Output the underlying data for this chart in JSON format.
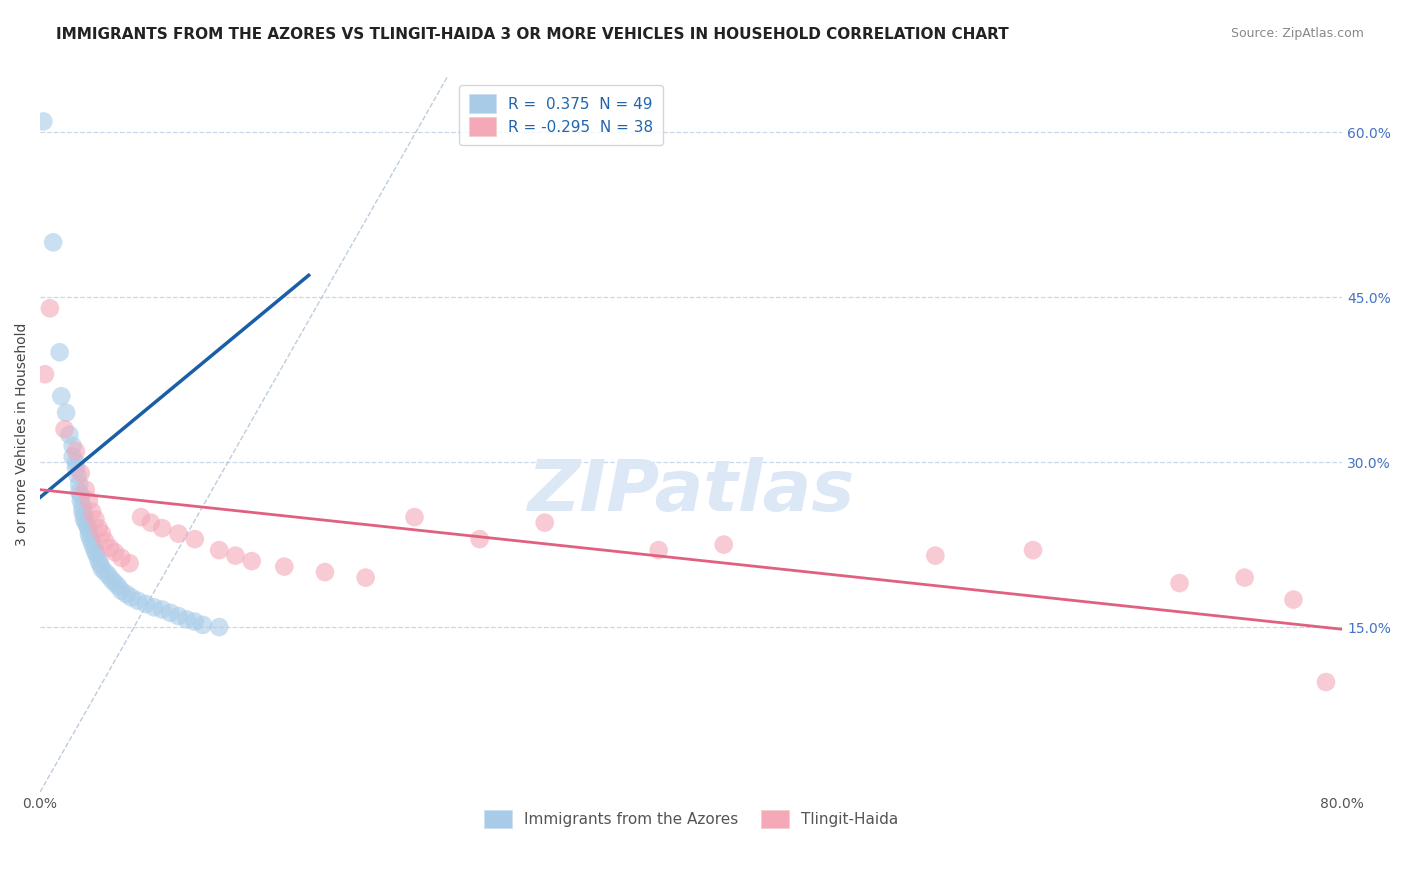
{
  "title": "IMMIGRANTS FROM THE AZORES VS TLINGIT-HAIDA 3 OR MORE VEHICLES IN HOUSEHOLD CORRELATION CHART",
  "source": "Source: ZipAtlas.com",
  "ylabel": "3 or more Vehicles in Household",
  "xlabel": "",
  "xlim": [
    0.0,
    0.8
  ],
  "ylim": [
    0.0,
    0.65
  ],
  "yticks_right": [
    0.15,
    0.3,
    0.45,
    0.6
  ],
  "ytick_right_labels": [
    "15.0%",
    "30.0%",
    "45.0%",
    "60.0%"
  ],
  "blue_color": "#a8cce8",
  "pink_color": "#f4a8b8",
  "blue_line_color": "#1a5ea8",
  "pink_line_color": "#e06080",
  "watermark_text": "ZIPatlas",
  "title_fontsize": 11,
  "source_fontsize": 9,
  "axis_label_fontsize": 10,
  "tick_fontsize": 10,
  "legend_fontsize": 11,
  "watermark_fontsize": 52,
  "watermark_color": "#dce8f5",
  "background_color": "#ffffff",
  "grid_color": "#c8d8ea",
  "dot_size": 180,
  "blue_points": [
    [
      0.002,
      0.61
    ],
    [
      0.008,
      0.5
    ],
    [
      0.012,
      0.4
    ],
    [
      0.013,
      0.36
    ],
    [
      0.016,
      0.345
    ],
    [
      0.018,
      0.325
    ],
    [
      0.02,
      0.315
    ],
    [
      0.02,
      0.305
    ],
    [
      0.022,
      0.3
    ],
    [
      0.022,
      0.295
    ],
    [
      0.023,
      0.288
    ],
    [
      0.024,
      0.28
    ],
    [
      0.024,
      0.273
    ],
    [
      0.025,
      0.27
    ],
    [
      0.025,
      0.265
    ],
    [
      0.026,
      0.26
    ],
    [
      0.026,
      0.255
    ],
    [
      0.027,
      0.252
    ],
    [
      0.027,
      0.248
    ],
    [
      0.028,
      0.245
    ],
    [
      0.029,
      0.242
    ],
    [
      0.03,
      0.238
    ],
    [
      0.03,
      0.234
    ],
    [
      0.031,
      0.23
    ],
    [
      0.032,
      0.226
    ],
    [
      0.033,
      0.222
    ],
    [
      0.034,
      0.218
    ],
    [
      0.035,
      0.215
    ],
    [
      0.036,
      0.21
    ],
    [
      0.037,
      0.207
    ],
    [
      0.038,
      0.203
    ],
    [
      0.04,
      0.2
    ],
    [
      0.042,
      0.197
    ],
    [
      0.044,
      0.193
    ],
    [
      0.046,
      0.19
    ],
    [
      0.048,
      0.187
    ],
    [
      0.05,
      0.183
    ],
    [
      0.053,
      0.18
    ],
    [
      0.056,
      0.177
    ],
    [
      0.06,
      0.174
    ],
    [
      0.065,
      0.171
    ],
    [
      0.07,
      0.168
    ],
    [
      0.075,
      0.166
    ],
    [
      0.08,
      0.163
    ],
    [
      0.085,
      0.16
    ],
    [
      0.09,
      0.157
    ],
    [
      0.095,
      0.155
    ],
    [
      0.1,
      0.152
    ],
    [
      0.11,
      0.15
    ]
  ],
  "pink_points": [
    [
      0.003,
      0.38
    ],
    [
      0.006,
      0.44
    ],
    [
      0.015,
      0.33
    ],
    [
      0.022,
      0.31
    ],
    [
      0.025,
      0.29
    ],
    [
      0.028,
      0.275
    ],
    [
      0.03,
      0.265
    ],
    [
      0.032,
      0.255
    ],
    [
      0.034,
      0.248
    ],
    [
      0.036,
      0.24
    ],
    [
      0.038,
      0.235
    ],
    [
      0.04,
      0.228
    ],
    [
      0.043,
      0.222
    ],
    [
      0.046,
      0.218
    ],
    [
      0.05,
      0.213
    ],
    [
      0.055,
      0.208
    ],
    [
      0.062,
      0.25
    ],
    [
      0.068,
      0.245
    ],
    [
      0.075,
      0.24
    ],
    [
      0.085,
      0.235
    ],
    [
      0.095,
      0.23
    ],
    [
      0.11,
      0.22
    ],
    [
      0.12,
      0.215
    ],
    [
      0.13,
      0.21
    ],
    [
      0.15,
      0.205
    ],
    [
      0.175,
      0.2
    ],
    [
      0.2,
      0.195
    ],
    [
      0.23,
      0.25
    ],
    [
      0.27,
      0.23
    ],
    [
      0.31,
      0.245
    ],
    [
      0.38,
      0.22
    ],
    [
      0.42,
      0.225
    ],
    [
      0.55,
      0.215
    ],
    [
      0.61,
      0.22
    ],
    [
      0.7,
      0.19
    ],
    [
      0.74,
      0.195
    ],
    [
      0.77,
      0.175
    ],
    [
      0.79,
      0.1
    ]
  ],
  "blue_line_x": [
    0.0,
    0.165
  ],
  "blue_line_y": [
    0.268,
    0.47
  ],
  "pink_line_x": [
    0.0,
    0.8
  ],
  "pink_line_y": [
    0.275,
    0.148
  ]
}
